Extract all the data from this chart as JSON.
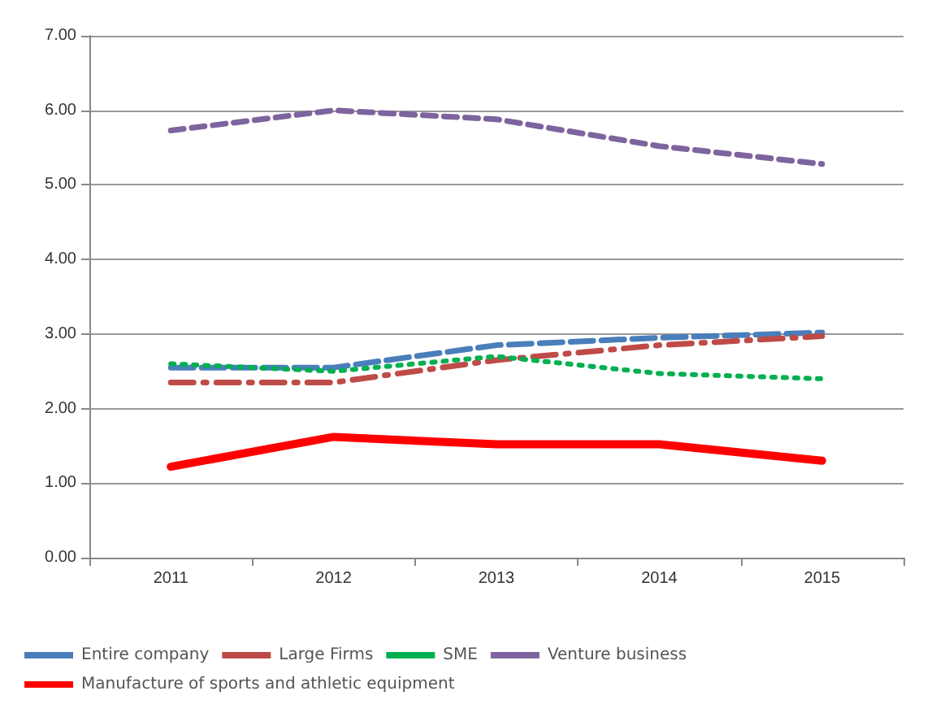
{
  "chart_data": {
    "type": "line",
    "categories": [
      "2011",
      "2012",
      "2013",
      "2014",
      "2015"
    ],
    "series": [
      {
        "name": "Entire company",
        "color": "#4a7ebb",
        "line_style": "longdash",
        "values": [
          2.55,
          2.55,
          2.85,
          2.95,
          3.02
        ]
      },
      {
        "name": "Large Firms",
        "color": "#be4b48",
        "line_style": "dashdot",
        "values": [
          2.35,
          2.35,
          2.65,
          2.85,
          2.97
        ]
      },
      {
        "name": "SME",
        "color": "#00b050",
        "line_style": "dotted",
        "values": [
          2.6,
          2.5,
          2.7,
          2.47,
          2.4
        ]
      },
      {
        "name": "Venture business",
        "color": "#7e649e",
        "line_style": "dashed",
        "values": [
          5.73,
          6.0,
          5.88,
          5.52,
          5.28
        ]
      },
      {
        "name": "Manufacture of sports and athletic equipment",
        "color": "#ff0000",
        "line_style": "solid",
        "values": [
          1.22,
          1.62,
          1.52,
          1.52,
          1.3
        ]
      }
    ],
    "ylim": [
      0,
      7
    ],
    "yticks": [
      {
        "value": 0,
        "label": "0.00"
      },
      {
        "value": 1,
        "label": "1.00"
      },
      {
        "value": 2,
        "label": "2.00"
      },
      {
        "value": 3,
        "label": "3.00"
      },
      {
        "value": 4,
        "label": "4.00"
      },
      {
        "value": 5,
        "label": "5.00"
      },
      {
        "value": 6,
        "label": "6.00"
      },
      {
        "value": 7,
        "label": "7.00"
      }
    ],
    "grid": "y",
    "legend": "bottom",
    "marker": "none"
  }
}
